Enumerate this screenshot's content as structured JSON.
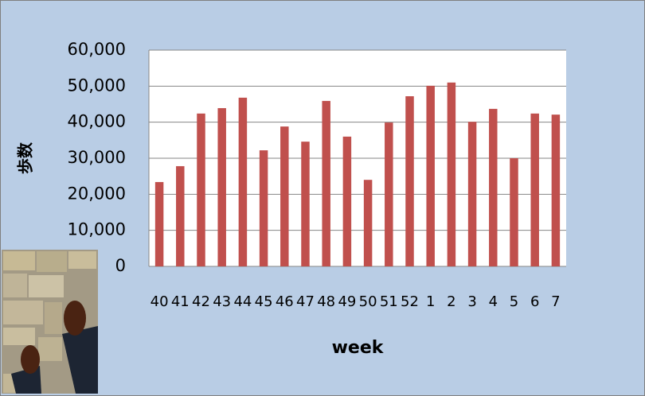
{
  "chart_data": {
    "type": "bar",
    "x_label": "week",
    "y_label": "歩数",
    "categories": [
      "40",
      "41",
      "42",
      "43",
      "44",
      "45",
      "46",
      "47",
      "48",
      "49",
      "50",
      "51",
      "52",
      "1",
      "2",
      "3",
      "4",
      "5",
      "6",
      "7"
    ],
    "values": [
      23400,
      27800,
      42400,
      43900,
      46800,
      32200,
      38800,
      34600,
      45900,
      36000,
      24000,
      39900,
      47200,
      50100,
      51000,
      40100,
      43700,
      30000,
      42400,
      42100
    ],
    "color": "#c0504d",
    "ylim": [
      0,
      60000
    ],
    "yticks": [
      0,
      {
        "value": 10000,
        "label": "10,000"
      },
      {
        "value": 20000,
        "label": "20,000"
      },
      {
        "value": 30000,
        "label": "30,000"
      },
      {
        "value": 40000,
        "label": "40,000"
      },
      {
        "value": 50000,
        "label": "50,000"
      },
      {
        "value": 60000,
        "label": "60,000"
      }
    ],
    "grid": true
  }
}
